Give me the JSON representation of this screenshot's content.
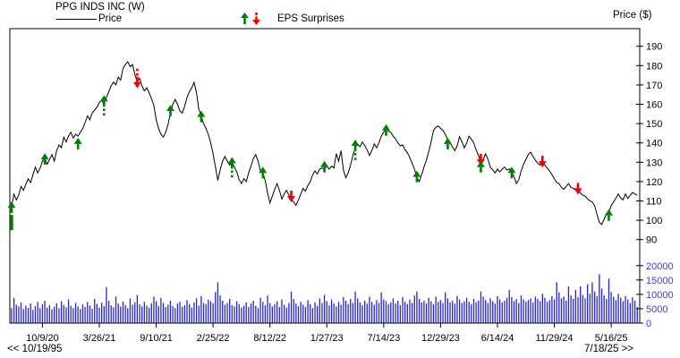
{
  "header": {
    "title": "PPG INDS INC (W)",
    "legend_price": "Price",
    "legend_eps": "EPS Surprises",
    "right_axis_title": "Price ($)"
  },
  "nav": {
    "back": "<< 10/19/95",
    "forward": "7/18/25 >>"
  },
  "chart_data": {
    "type": "line",
    "title": "PPG INDS INC (W)",
    "frequency": "weekly",
    "legend": [
      "Price",
      "EPS Surprises"
    ],
    "colors": {
      "price_line": "#000000",
      "volume": "#2424DC",
      "volume_text": "#3B3BE8",
      "up": "#008000",
      "down": "#EE0000",
      "axis": "#000000"
    },
    "price_axis": {
      "title": "Price ($)",
      "ticks": [
        90,
        100,
        110,
        120,
        130,
        140,
        150,
        160,
        170,
        180,
        190
      ]
    },
    "volume_axis": {
      "ticks": [
        0,
        5000,
        10000,
        15000,
        20000
      ]
    },
    "x_ticks": [
      {
        "week": 13,
        "label": "10/9/20"
      },
      {
        "week": 37,
        "label": "3/26/21"
      },
      {
        "week": 61,
        "label": "9/10/21"
      },
      {
        "week": 85,
        "label": "2/25/22"
      },
      {
        "week": 109,
        "label": "8/12/22"
      },
      {
        "week": 133,
        "label": "1/27/23"
      },
      {
        "week": 157,
        "label": "7/14/23"
      },
      {
        "week": 181,
        "label": "12/29/23"
      },
      {
        "week": 205,
        "label": "6/14/24"
      },
      {
        "week": 229,
        "label": "11/29/24"
      },
      {
        "week": 253,
        "label": "5/16/25"
      }
    ],
    "price_weekly": [
      107.5,
      113.5,
      110.5,
      113,
      117.5,
      115.5,
      118.5,
      121.5,
      119.5,
      123.5,
      127.5,
      124.5,
      127,
      130.5,
      132,
      129,
      131.5,
      134,
      130.5,
      136,
      139,
      137.5,
      143,
      140.5,
      143.5,
      145.5,
      142.5,
      144.5,
      143.5,
      145.5,
      147.5,
      150.5,
      154,
      152,
      155.5,
      157,
      158.5,
      161,
      162,
      160,
      163.5,
      166.5,
      169.5,
      171.5,
      170,
      174,
      172.5,
      178.5,
      180.5,
      182,
      179.5,
      180.5,
      175.5,
      171.5,
      173.5,
      169.5,
      167,
      168.5,
      166,
      163,
      159.5,
      152,
      147.5,
      144.5,
      143,
      145.5,
      149.5,
      155.5,
      160,
      162.5,
      160,
      156.5,
      155.5,
      159,
      163.5,
      166.5,
      168.5,
      171.3,
      166,
      157.5,
      154,
      150,
      147.5,
      144.5,
      140,
      134.5,
      127.5,
      120.6,
      126,
      130.5,
      133,
      130.5,
      128.5,
      130,
      127.5,
      125,
      121,
      119,
      121.5,
      120,
      124.5,
      128,
      132,
      134,
      130.5,
      125.5,
      124.5,
      120.5,
      114,
      109,
      112.5,
      116,
      119,
      115.5,
      111,
      113.5,
      115.5,
      113,
      110.5,
      109.5,
      107.7,
      110.5,
      113.5,
      116.5,
      115,
      118,
      119.8,
      123.5,
      125.5,
      124,
      126.5,
      127,
      126.5,
      128,
      126.5,
      128,
      127,
      134.5,
      130.5,
      136,
      126,
      122,
      124.5,
      128.5,
      133.5,
      137.5,
      139.5,
      138,
      140.5,
      138.5,
      136.5,
      133.5,
      136,
      139.5,
      137.5,
      140,
      143.5,
      145.5,
      148,
      146,
      145.5,
      143.5,
      142,
      140,
      138.5,
      139,
      136.5,
      135,
      132.5,
      129.5,
      126.5,
      122,
      120,
      123.5,
      127.5,
      131,
      135.5,
      140.5,
      146.5,
      148,
      148.8,
      147.5,
      146.5,
      144.5,
      141.5,
      139.9,
      138,
      136,
      138.5,
      143.3,
      140.5,
      137.5,
      140,
      143.5,
      142,
      140,
      136.5,
      133.5,
      129.5,
      131.5,
      134.4,
      131.5,
      127.5,
      126,
      124.5,
      126.5,
      125,
      126.5,
      127.5,
      126,
      126.5,
      125,
      122.5,
      119,
      121,
      125.5,
      129,
      131.5,
      134,
      135.2,
      133,
      131,
      129.5,
      128.5,
      130.6,
      128.5,
      127,
      125.5,
      123.5,
      121.5,
      119.5,
      119,
      117,
      116,
      117.5,
      119,
      117,
      116.5,
      115.5,
      115.9,
      114,
      113,
      112.5,
      111,
      110,
      109.5,
      107.5,
      103,
      99,
      97.8,
      100.5,
      103.5,
      104.5,
      107.5,
      109.5,
      111.5,
      113.6,
      111.5,
      110.6,
      113.6,
      111.3,
      112.9,
      114.4,
      113.6,
      113
    ],
    "volume_weekly": [
      5200,
      8800,
      6400,
      5800,
      7200,
      4900,
      6100,
      5300,
      6800,
      4600,
      5900,
      7400,
      5200,
      6600,
      7800,
      5400,
      6200,
      4800,
      5700,
      6900,
      5100,
      7600,
      6300,
      5500,
      8200,
      6000,
      5200,
      7000,
      5800,
      4900,
      6500,
      5600,
      7300,
      6100,
      5000,
      8400,
      6700,
      5400,
      7100,
      5900,
      12500,
      7800,
      6200,
      5500,
      9200,
      6800,
      5700,
      7500,
      6300,
      5100,
      8600,
      6400,
      7200,
      9800,
      6600,
      5800,
      7400,
      6100,
      5300,
      6900,
      9200,
      7600,
      6000,
      8800,
      7000,
      5600,
      6400,
      7800,
      5900,
      5200,
      6800,
      7400,
      5700,
      6200,
      8000,
      6600,
      5400,
      7200,
      8600,
      6100,
      9400,
      7000,
      6500,
      8200,
      7600,
      6900,
      10800,
      14200,
      9600,
      7800,
      6400,
      7000,
      8400,
      6200,
      5800,
      7600,
      6600,
      5400,
      6000,
      7200,
      5600,
      6800,
      7800,
      6000,
      5200,
      8800,
      7400,
      6200,
      9600,
      7000,
      5800,
      6600,
      7600,
      5600,
      8200,
      6400,
      5400,
      7000,
      11000,
      8400,
      6800,
      5800,
      7400,
      6400,
      5600,
      8000,
      6600,
      5200,
      7200,
      6000,
      8600,
      7000,
      9800,
      7600,
      6200,
      8200,
      6800,
      5800,
      7400,
      6400,
      9000,
      7800,
      6600,
      8400,
      7000,
      11000,
      8600,
      7200,
      6200,
      7800,
      6800,
      9200,
      7400,
      6400,
      8000,
      7000,
      10700,
      8200,
      7600,
      6600,
      7200,
      8600,
      6800,
      7800,
      6200,
      9000,
      7400,
      6600,
      8200,
      7000,
      9600,
      11000,
      8400,
      7200,
      7800,
      6800,
      8800,
      7600,
      6600,
      9200,
      7400,
      8000,
      7000,
      10700,
      8600,
      7200,
      7800,
      6800,
      9400,
      8200,
      7000,
      7600,
      8800,
      7400,
      6600,
      8400,
      7200,
      7800,
      11000,
      9200,
      8000,
      7000,
      8600,
      7600,
      6800,
      9400,
      8200,
      7200,
      7800,
      8800,
      11500,
      9000,
      7600,
      8400,
      7000,
      9600,
      8200,
      7400,
      8000,
      8600,
      7200,
      9200,
      8400,
      7600,
      10200,
      8800,
      7400,
      8000,
      9400,
      8200,
      14200,
      10700,
      8600,
      9200,
      7800,
      12800,
      9600,
      8400,
      11500,
      9000,
      12800,
      9800,
      8600,
      13500,
      10200,
      14200,
      11000,
      9400,
      17000,
      12000,
      9600,
      8400,
      15500,
      10800,
      9200,
      8000,
      10200,
      8800,
      7600,
      9400,
      8200,
      7000,
      9000,
      7800,
      5600
    ],
    "eps_surprises": [
      {
        "week": 0,
        "price": 106,
        "direction": "up",
        "tail": "solid"
      },
      {
        "week": 14,
        "price": 131,
        "direction": "up"
      },
      {
        "week": 28,
        "price": 139,
        "direction": "up"
      },
      {
        "week": 39,
        "price": 161,
        "direction": "up",
        "tail": "dotted"
      },
      {
        "week": 53,
        "price": 172,
        "direction": "down",
        "tail": "dotted"
      },
      {
        "week": 67,
        "price": 156,
        "direction": "up"
      },
      {
        "week": 80,
        "price": 153,
        "direction": "up"
      },
      {
        "week": 93,
        "price": 129,
        "direction": "up",
        "tail": "dotted"
      },
      {
        "week": 106,
        "price": 124,
        "direction": "up"
      },
      {
        "week": 118,
        "price": 113,
        "direction": "down"
      },
      {
        "week": 132,
        "price": 127,
        "direction": "up"
      },
      {
        "week": 145,
        "price": 138,
        "direction": "up",
        "tail": "dotted"
      },
      {
        "week": 158,
        "price": 146,
        "direction": "up"
      },
      {
        "week": 171,
        "price": 122,
        "direction": "up"
      },
      {
        "week": 184,
        "price": 139,
        "direction": "up"
      },
      {
        "week": 198,
        "price": 132,
        "direction": "down"
      },
      {
        "week": 198,
        "price": 127,
        "direction": "up"
      },
      {
        "week": 211,
        "price": 124,
        "direction": "up"
      },
      {
        "week": 224,
        "price": 131,
        "direction": "down"
      },
      {
        "week": 239,
        "price": 117,
        "direction": "down"
      },
      {
        "week": 252,
        "price": 102,
        "direction": "up"
      }
    ]
  }
}
